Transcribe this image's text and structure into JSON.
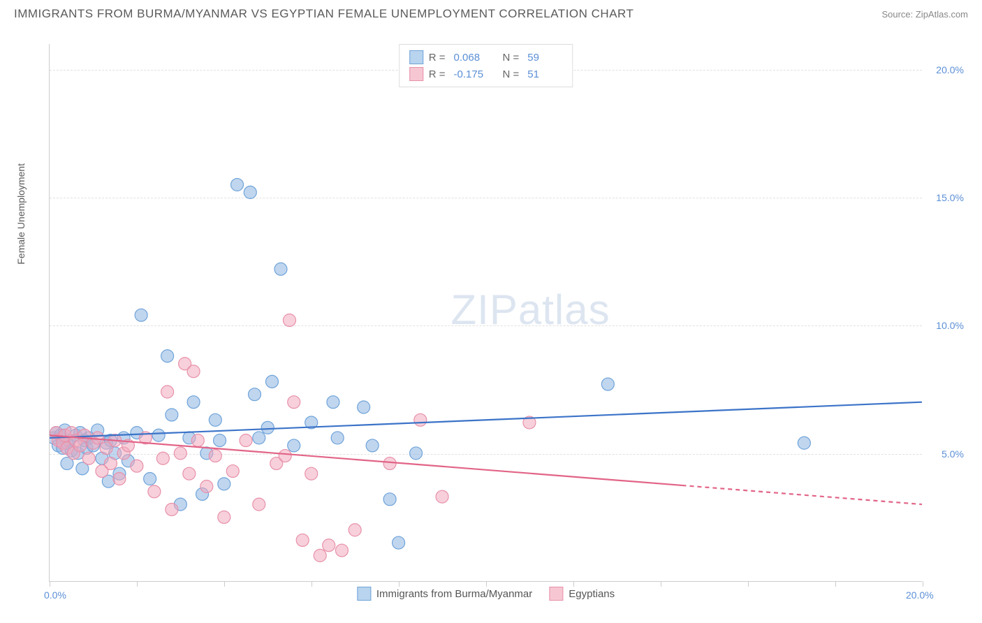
{
  "header": {
    "title": "IMMIGRANTS FROM BURMA/MYANMAR VS EGYPTIAN FEMALE UNEMPLOYMENT CORRELATION CHART",
    "source": "Source: ZipAtlas.com"
  },
  "chart": {
    "type": "scatter",
    "y_axis_title": "Female Unemployment",
    "watermark": "ZIPatlas",
    "background_color": "#ffffff",
    "grid_color": "#e0e0e0",
    "axis_color": "#cccccc",
    "tick_label_color": "#5b8fd6",
    "xlim": [
      0,
      20
    ],
    "ylim": [
      0,
      21
    ],
    "x_ticks_percent": [
      0,
      2,
      4,
      6,
      8,
      10,
      12,
      14,
      16,
      18,
      20
    ],
    "x_labels": [
      {
        "value": 0,
        "label": "0.0%"
      },
      {
        "value": 20,
        "label": "20.0%"
      }
    ],
    "y_gridlines": [
      {
        "value": 5,
        "label": "5.0%"
      },
      {
        "value": 10,
        "label": "10.0%"
      },
      {
        "value": 15,
        "label": "15.0%"
      },
      {
        "value": 20,
        "label": "20.0%"
      }
    ],
    "legend_top": [
      {
        "swatch_fill": "#b9d4ee",
        "swatch_stroke": "#6fa3d9",
        "r_label": "R  =",
        "r_value": "0.068",
        "n_label": "N  =",
        "n_value": "59"
      },
      {
        "swatch_fill": "#f6c7d3",
        "swatch_stroke": "#e890a9",
        "r_label": "R  =",
        "r_value": "-0.175",
        "n_label": "N  =",
        "n_value": "51"
      }
    ],
    "legend_bottom": [
      {
        "swatch_fill": "#b9d4ee",
        "swatch_stroke": "#6fa3d9",
        "label": "Immigrants from Burma/Myanmar"
      },
      {
        "swatch_fill": "#f6c7d3",
        "swatch_stroke": "#e890a9",
        "label": "Egyptians"
      }
    ],
    "series": [
      {
        "name": "blue",
        "marker_fill": "rgba(140,180,225,0.55)",
        "marker_stroke": "#6fa3d9",
        "marker_radius": 9,
        "trend_color": "#3b73c8",
        "trend_width": 2.2,
        "trend": {
          "x1": 0,
          "y1": 5.6,
          "x2": 20,
          "y2": 7.0,
          "solid_end_x": 20
        },
        "points": [
          [
            0.1,
            5.6
          ],
          [
            0.15,
            5.8
          ],
          [
            0.2,
            5.3
          ],
          [
            0.25,
            5.7
          ],
          [
            0.3,
            5.2
          ],
          [
            0.35,
            5.9
          ],
          [
            0.4,
            5.4
          ],
          [
            0.4,
            4.6
          ],
          [
            0.45,
            5.5
          ],
          [
            0.5,
            5.1
          ],
          [
            0.6,
            5.7
          ],
          [
            0.65,
            5.0
          ],
          [
            0.7,
            5.8
          ],
          [
            0.75,
            4.4
          ],
          [
            0.8,
            5.5
          ],
          [
            0.85,
            5.2
          ],
          [
            0.9,
            5.6
          ],
          [
            1.0,
            5.3
          ],
          [
            1.1,
            5.9
          ],
          [
            1.2,
            4.8
          ],
          [
            1.3,
            5.4
          ],
          [
            1.35,
            3.9
          ],
          [
            1.4,
            5.5
          ],
          [
            1.5,
            5.0
          ],
          [
            1.6,
            4.2
          ],
          [
            1.7,
            5.6
          ],
          [
            1.8,
            4.7
          ],
          [
            2.0,
            5.8
          ],
          [
            2.1,
            10.4
          ],
          [
            2.3,
            4.0
          ],
          [
            2.5,
            5.7
          ],
          [
            2.7,
            8.8
          ],
          [
            2.8,
            6.5
          ],
          [
            3.0,
            3.0
          ],
          [
            3.2,
            5.6
          ],
          [
            3.3,
            7.0
          ],
          [
            3.5,
            3.4
          ],
          [
            3.6,
            5.0
          ],
          [
            3.8,
            6.3
          ],
          [
            3.9,
            5.5
          ],
          [
            4.0,
            3.8
          ],
          [
            4.3,
            15.5
          ],
          [
            4.6,
            15.2
          ],
          [
            4.7,
            7.3
          ],
          [
            4.8,
            5.6
          ],
          [
            5.0,
            6.0
          ],
          [
            5.1,
            7.8
          ],
          [
            5.3,
            12.2
          ],
          [
            5.6,
            5.3
          ],
          [
            6.0,
            6.2
          ],
          [
            6.5,
            7.0
          ],
          [
            6.6,
            5.6
          ],
          [
            7.2,
            6.8
          ],
          [
            7.4,
            5.3
          ],
          [
            7.8,
            3.2
          ],
          [
            8.0,
            1.5
          ],
          [
            8.4,
            5.0
          ],
          [
            12.8,
            7.7
          ],
          [
            17.3,
            5.4
          ]
        ]
      },
      {
        "name": "pink",
        "marker_fill": "rgba(240,170,190,0.55)",
        "marker_stroke": "#e890a9",
        "marker_radius": 9,
        "trend_color": "#e26487",
        "trend_width": 2.2,
        "trend": {
          "x1": 0,
          "y1": 5.7,
          "x2": 20,
          "y2": 3.0,
          "solid_end_x": 14.5
        },
        "points": [
          [
            0.15,
            5.8
          ],
          [
            0.2,
            5.5
          ],
          [
            0.3,
            5.4
          ],
          [
            0.35,
            5.7
          ],
          [
            0.4,
            5.2
          ],
          [
            0.5,
            5.8
          ],
          [
            0.55,
            5.0
          ],
          [
            0.6,
            5.5
          ],
          [
            0.7,
            5.3
          ],
          [
            0.8,
            5.7
          ],
          [
            0.9,
            4.8
          ],
          [
            1.0,
            5.4
          ],
          [
            1.1,
            5.6
          ],
          [
            1.2,
            4.3
          ],
          [
            1.3,
            5.2
          ],
          [
            1.4,
            4.6
          ],
          [
            1.5,
            5.5
          ],
          [
            1.6,
            4.0
          ],
          [
            1.7,
            5.0
          ],
          [
            1.8,
            5.3
          ],
          [
            2.0,
            4.5
          ],
          [
            2.2,
            5.6
          ],
          [
            2.4,
            3.5
          ],
          [
            2.6,
            4.8
          ],
          [
            2.7,
            7.4
          ],
          [
            2.8,
            2.8
          ],
          [
            3.0,
            5.0
          ],
          [
            3.1,
            8.5
          ],
          [
            3.2,
            4.2
          ],
          [
            3.3,
            8.2
          ],
          [
            3.4,
            5.5
          ],
          [
            3.6,
            3.7
          ],
          [
            3.8,
            4.9
          ],
          [
            4.0,
            2.5
          ],
          [
            4.2,
            4.3
          ],
          [
            4.5,
            5.5
          ],
          [
            4.8,
            3.0
          ],
          [
            5.2,
            4.6
          ],
          [
            5.4,
            4.9
          ],
          [
            5.5,
            10.2
          ],
          [
            5.6,
            7.0
          ],
          [
            5.8,
            1.6
          ],
          [
            6.0,
            4.2
          ],
          [
            6.2,
            1.0
          ],
          [
            6.4,
            1.4
          ],
          [
            6.7,
            1.2
          ],
          [
            7.0,
            2.0
          ],
          [
            7.8,
            4.6
          ],
          [
            8.5,
            6.3
          ],
          [
            9.0,
            3.3
          ],
          [
            11.0,
            6.2
          ]
        ]
      }
    ]
  }
}
